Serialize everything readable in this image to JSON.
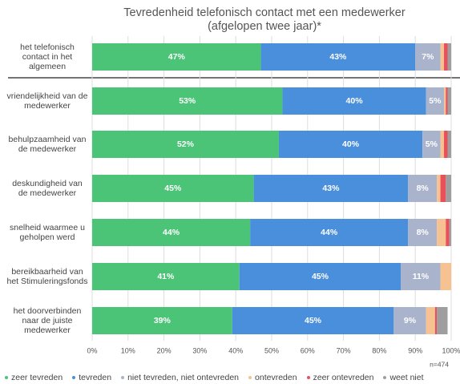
{
  "chart_data": {
    "type": "stacked-barh",
    "title": "Tevredenheid telefonisch contact met een medewerker",
    "subtitle": "(afgelopen twee jaar)*",
    "note": "n=474",
    "categories": [
      "het telefonisch contact in het algemeen",
      "vriendelijkheid van de medewerker",
      "behulpzaamheid van de medewerker",
      "deskundigheid van de medewerker",
      "snelheid waarmee u geholpen werd",
      "bereikbaarheid van het Stimuleringsfonds",
      "het doorverbinden naar de juiste medewerker"
    ],
    "series": [
      {
        "name": "zeer tevreden",
        "color": "#4cc477",
        "values": [
          47,
          53,
          52,
          45,
          44,
          41,
          39
        ],
        "value_labels": [
          "47%",
          "53%",
          "52%",
          "45%",
          "44%",
          "41%",
          "39%"
        ]
      },
      {
        "name": "tevreden",
        "color": "#4a8fdc",
        "values": [
          43,
          40,
          40,
          43,
          44,
          45,
          45
        ],
        "value_labels": [
          "43%",
          "40%",
          "40%",
          "43%",
          "44%",
          "45%",
          "45%"
        ]
      },
      {
        "name": "niet tevreden, niet ontevreden",
        "color": "#a9b3cc",
        "values": [
          7,
          5,
          5,
          8,
          8,
          11,
          9
        ],
        "value_labels": [
          "7%",
          "5%",
          "5%",
          "8%",
          "8%",
          "11%",
          "9%"
        ]
      },
      {
        "name": "ontevreden",
        "color": "#f6c292",
        "values": [
          1,
          0.5,
          1,
          1,
          2.5,
          3,
          2.5
        ]
      },
      {
        "name": "zeer ontevreden",
        "color": "#e8505a",
        "values": [
          1,
          0.5,
          1,
          1.5,
          1,
          0,
          0.5
        ]
      },
      {
        "name": "weet niet",
        "color": "#9e9e9e",
        "values": [
          1,
          1,
          1,
          1.5,
          0.5,
          0,
          3
        ]
      }
    ],
    "xlim": [
      0,
      100
    ],
    "xticks": [
      {
        "value": 0,
        "label": "0%"
      },
      {
        "value": 10,
        "label": "10%"
      },
      {
        "value": 20,
        "label": "20%"
      },
      {
        "value": 30,
        "label": "30%"
      },
      {
        "value": 40,
        "label": "40%"
      },
      {
        "value": 50,
        "label": "50%"
      },
      {
        "value": 60,
        "label": "60%"
      },
      {
        "value": 70,
        "label": "70%"
      },
      {
        "value": 80,
        "label": "80%"
      },
      {
        "value": 90,
        "label": "90%"
      },
      {
        "value": 100,
        "label": "100%"
      }
    ],
    "grid": true
  }
}
